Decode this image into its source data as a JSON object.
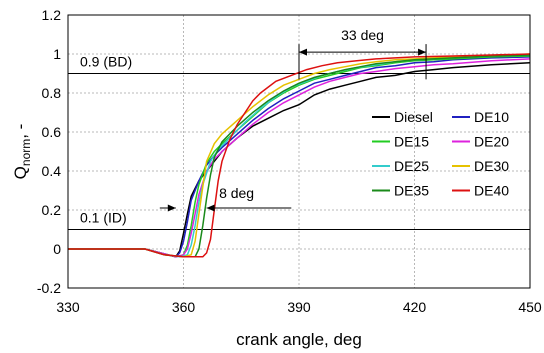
{
  "chart_data": {
    "type": "line",
    "xlabel": "crank angle, deg",
    "ylabel_main": "Q",
    "ylabel_sub": "norm",
    "ylabel_suffix": ", -",
    "xlim": [
      330,
      450
    ],
    "ylim": [
      -0.2,
      1.2
    ],
    "x_ticks": [
      330,
      360,
      390,
      420,
      450
    ],
    "y_ticks": [
      -0.2,
      0,
      0.2,
      0.4,
      0.6,
      0.8,
      1,
      1.2
    ],
    "x_tick_labels": [
      "330",
      "360",
      "390",
      "420",
      "450"
    ],
    "y_tick_labels": [
      "-0.2",
      "0",
      "0.2",
      "0.4",
      "0.6",
      "0.8",
      "1",
      "1.2"
    ],
    "grid": true,
    "legend_position": "right, middle",
    "reference_lines": [
      {
        "label": "0.9 (BD)",
        "y": 0.9
      },
      {
        "label": "0.1 (ID)",
        "y": 0.1
      }
    ],
    "annotations": [
      {
        "label": "33 deg",
        "x_from": 390,
        "x_to": 423,
        "y": 1.02
      },
      {
        "label": "8 deg",
        "x_from": 358,
        "x_to": 366,
        "y": 0.2
      }
    ],
    "series": [
      {
        "name": "Diesel",
        "color": "#000000",
        "points": [
          [
            330,
            0
          ],
          [
            350,
            0
          ],
          [
            354,
            -0.02
          ],
          [
            358,
            -0.04
          ],
          [
            359,
            -0.01
          ],
          [
            360,
            0.08
          ],
          [
            361,
            0.18
          ],
          [
            362,
            0.27
          ],
          [
            364,
            0.35
          ],
          [
            366,
            0.4
          ],
          [
            368,
            0.45
          ],
          [
            370,
            0.5
          ],
          [
            374,
            0.57
          ],
          [
            378,
            0.63
          ],
          [
            382,
            0.67
          ],
          [
            386,
            0.71
          ],
          [
            390,
            0.74
          ],
          [
            394,
            0.79
          ],
          [
            398,
            0.82
          ],
          [
            402,
            0.84
          ],
          [
            406,
            0.86
          ],
          [
            410,
            0.88
          ],
          [
            415,
            0.89
          ],
          [
            420,
            0.91
          ],
          [
            425,
            0.92
          ],
          [
            430,
            0.93
          ],
          [
            440,
            0.945
          ],
          [
            450,
            0.955
          ]
        ]
      },
      {
        "name": "DE10",
        "color": "#2020c0",
        "points": [
          [
            330,
            0
          ],
          [
            350,
            0
          ],
          [
            354,
            -0.02
          ],
          [
            358,
            -0.04
          ],
          [
            359,
            -0.02
          ],
          [
            360,
            0.04
          ],
          [
            361,
            0.14
          ],
          [
            362,
            0.25
          ],
          [
            364,
            0.35
          ],
          [
            366,
            0.43
          ],
          [
            368,
            0.48
          ],
          [
            370,
            0.52
          ],
          [
            374,
            0.59
          ],
          [
            378,
            0.66
          ],
          [
            382,
            0.72
          ],
          [
            386,
            0.77
          ],
          [
            390,
            0.81
          ],
          [
            394,
            0.85
          ],
          [
            398,
            0.87
          ],
          [
            402,
            0.89
          ],
          [
            406,
            0.91
          ],
          [
            410,
            0.93
          ],
          [
            415,
            0.94
          ],
          [
            420,
            0.955
          ],
          [
            425,
            0.96
          ],
          [
            430,
            0.97
          ],
          [
            440,
            0.98
          ],
          [
            450,
            0.985
          ]
        ]
      },
      {
        "name": "DE15",
        "color": "#22cc22",
        "points": [
          [
            330,
            0
          ],
          [
            350,
            0
          ],
          [
            354,
            -0.02
          ],
          [
            358,
            -0.04
          ],
          [
            360,
            -0.03
          ],
          [
            361,
            0.02
          ],
          [
            362,
            0.12
          ],
          [
            363,
            0.24
          ],
          [
            364,
            0.33
          ],
          [
            366,
            0.44
          ],
          [
            368,
            0.5
          ],
          [
            370,
            0.54
          ],
          [
            374,
            0.61
          ],
          [
            378,
            0.68
          ],
          [
            382,
            0.75
          ],
          [
            386,
            0.8
          ],
          [
            390,
            0.84
          ],
          [
            394,
            0.87
          ],
          [
            398,
            0.89
          ],
          [
            402,
            0.91
          ],
          [
            406,
            0.93
          ],
          [
            410,
            0.94
          ],
          [
            415,
            0.955
          ],
          [
            420,
            0.965
          ],
          [
            425,
            0.97
          ],
          [
            430,
            0.975
          ],
          [
            440,
            0.985
          ],
          [
            450,
            0.99
          ]
        ]
      },
      {
        "name": "DE20",
        "color": "#dd22dd",
        "points": [
          [
            330,
            0
          ],
          [
            350,
            0
          ],
          [
            354,
            -0.02
          ],
          [
            358,
            -0.04
          ],
          [
            360,
            -0.03
          ],
          [
            361,
            0.0
          ],
          [
            362,
            0.08
          ],
          [
            363,
            0.18
          ],
          [
            364,
            0.28
          ],
          [
            366,
            0.4
          ],
          [
            368,
            0.46
          ],
          [
            370,
            0.5
          ],
          [
            374,
            0.57
          ],
          [
            378,
            0.64
          ],
          [
            382,
            0.7
          ],
          [
            386,
            0.75
          ],
          [
            390,
            0.79
          ],
          [
            394,
            0.83
          ],
          [
            398,
            0.86
          ],
          [
            402,
            0.88
          ],
          [
            406,
            0.9
          ],
          [
            410,
            0.91
          ],
          [
            415,
            0.925
          ],
          [
            420,
            0.935
          ],
          [
            425,
            0.945
          ],
          [
            430,
            0.95
          ],
          [
            440,
            0.965
          ],
          [
            450,
            0.975
          ]
        ]
      },
      {
        "name": "DE25",
        "color": "#33cccc",
        "points": [
          [
            330,
            0
          ],
          [
            350,
            0
          ],
          [
            355,
            -0.03
          ],
          [
            359,
            -0.04
          ],
          [
            361,
            -0.03
          ],
          [
            362,
            0.02
          ],
          [
            363,
            0.12
          ],
          [
            364,
            0.24
          ],
          [
            365,
            0.33
          ],
          [
            367,
            0.45
          ],
          [
            369,
            0.51
          ],
          [
            372,
            0.57
          ],
          [
            376,
            0.65
          ],
          [
            380,
            0.72
          ],
          [
            384,
            0.78
          ],
          [
            388,
            0.83
          ],
          [
            392,
            0.86
          ],
          [
            396,
            0.89
          ],
          [
            400,
            0.91
          ],
          [
            405,
            0.93
          ],
          [
            410,
            0.945
          ],
          [
            415,
            0.96
          ],
          [
            420,
            0.97
          ],
          [
            430,
            0.98
          ],
          [
            440,
            0.99
          ],
          [
            450,
            0.995
          ]
        ]
      },
      {
        "name": "DE30",
        "color": "#e6c200",
        "points": [
          [
            330,
            0
          ],
          [
            350,
            0
          ],
          [
            355,
            -0.03
          ],
          [
            360,
            -0.04
          ],
          [
            362,
            -0.03
          ],
          [
            363,
            0.04
          ],
          [
            364,
            0.18
          ],
          [
            365,
            0.32
          ],
          [
            366,
            0.45
          ],
          [
            368,
            0.54
          ],
          [
            370,
            0.59
          ],
          [
            374,
            0.66
          ],
          [
            378,
            0.73
          ],
          [
            382,
            0.79
          ],
          [
            386,
            0.84
          ],
          [
            390,
            0.87
          ],
          [
            394,
            0.9
          ],
          [
            398,
            0.92
          ],
          [
            402,
            0.935
          ],
          [
            406,
            0.95
          ],
          [
            410,
            0.96
          ],
          [
            415,
            0.97
          ],
          [
            420,
            0.975
          ],
          [
            430,
            0.985
          ],
          [
            440,
            0.99
          ],
          [
            450,
            1.0
          ]
        ]
      },
      {
        "name": "DE35",
        "color": "#1a8a1a",
        "points": [
          [
            330,
            0
          ],
          [
            350,
            0
          ],
          [
            355,
            -0.03
          ],
          [
            360,
            -0.04
          ],
          [
            363,
            -0.04
          ],
          [
            364,
            0.0
          ],
          [
            365,
            0.12
          ],
          [
            366,
            0.26
          ],
          [
            367,
            0.38
          ],
          [
            368,
            0.47
          ],
          [
            370,
            0.55
          ],
          [
            374,
            0.63
          ],
          [
            378,
            0.7
          ],
          [
            382,
            0.76
          ],
          [
            386,
            0.81
          ],
          [
            390,
            0.85
          ],
          [
            394,
            0.88
          ],
          [
            398,
            0.9
          ],
          [
            402,
            0.92
          ],
          [
            406,
            0.935
          ],
          [
            410,
            0.95
          ],
          [
            415,
            0.96
          ],
          [
            420,
            0.97
          ],
          [
            430,
            0.98
          ],
          [
            440,
            0.99
          ],
          [
            450,
            0.995
          ]
        ]
      },
      {
        "name": "DE40",
        "color": "#dd1111",
        "points": [
          [
            330,
            0
          ],
          [
            350,
            0
          ],
          [
            355,
            -0.03
          ],
          [
            360,
            -0.04
          ],
          [
            365,
            -0.04
          ],
          [
            366,
            -0.02
          ],
          [
            367,
            0.05
          ],
          [
            368,
            0.2
          ],
          [
            369,
            0.35
          ],
          [
            370,
            0.45
          ],
          [
            372,
            0.56
          ],
          [
            374,
            0.64
          ],
          [
            376,
            0.7
          ],
          [
            378,
            0.76
          ],
          [
            380,
            0.8
          ],
          [
            384,
            0.86
          ],
          [
            388,
            0.89
          ],
          [
            392,
            0.92
          ],
          [
            396,
            0.94
          ],
          [
            400,
            0.955
          ],
          [
            405,
            0.965
          ],
          [
            410,
            0.975
          ],
          [
            415,
            0.98
          ],
          [
            420,
            0.985
          ],
          [
            430,
            0.99
          ],
          [
            440,
            0.995
          ],
          [
            450,
            1.0
          ]
        ]
      }
    ]
  }
}
